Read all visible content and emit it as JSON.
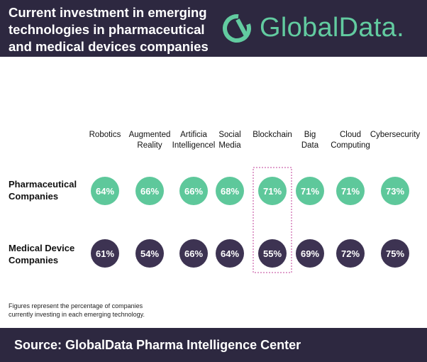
{
  "header": {
    "title_lines": [
      "Current investment in emerging",
      "technologies in pharmaceutical",
      "and medical devices companies"
    ]
  },
  "logo": {
    "text": "GlobalData.",
    "icon": "globaldata-logo-icon"
  },
  "colors": {
    "background_dark": "#2d2840",
    "pharma": "#5ec89b",
    "medical": "#3d3352",
    "highlight_border": "#c0409a"
  },
  "chart_data": {
    "type": "table",
    "categories": [
      [
        "Robotics"
      ],
      [
        "Augmented",
        "Reality"
      ],
      [
        "Artificia",
        "Intelligencel"
      ],
      [
        "Social",
        "Media"
      ],
      [
        "Blockchain"
      ],
      [
        "Big",
        "Data"
      ],
      [
        "Cloud",
        "Computing"
      ],
      [
        "Cybersecurity"
      ]
    ],
    "series": [
      {
        "name": [
          "Pharmaceutical",
          "Companies"
        ],
        "values": [
          64,
          66,
          66,
          68,
          71,
          71,
          71,
          73
        ],
        "labels": [
          "64%",
          "66%",
          "66%",
          "68%",
          "71%",
          "71%",
          "71%",
          "73%"
        ],
        "color": "#5ec89b"
      },
      {
        "name": [
          "Medical Device",
          "Companies"
        ],
        "values": [
          61,
          54,
          66,
          64,
          55,
          69,
          72,
          75
        ],
        "labels": [
          "61%",
          "54%",
          "66%",
          "64%",
          "55%",
          "69%",
          "72%",
          "75%"
        ],
        "color": "#3d3352"
      }
    ],
    "highlighted_category": "Blockchain",
    "unit": "%"
  },
  "footnote": [
    "Figures represent the percentage of companies",
    "currently investing in each emerging technology."
  ],
  "footer": {
    "source": "Source:  GlobalData Pharma Intelligence Center"
  }
}
